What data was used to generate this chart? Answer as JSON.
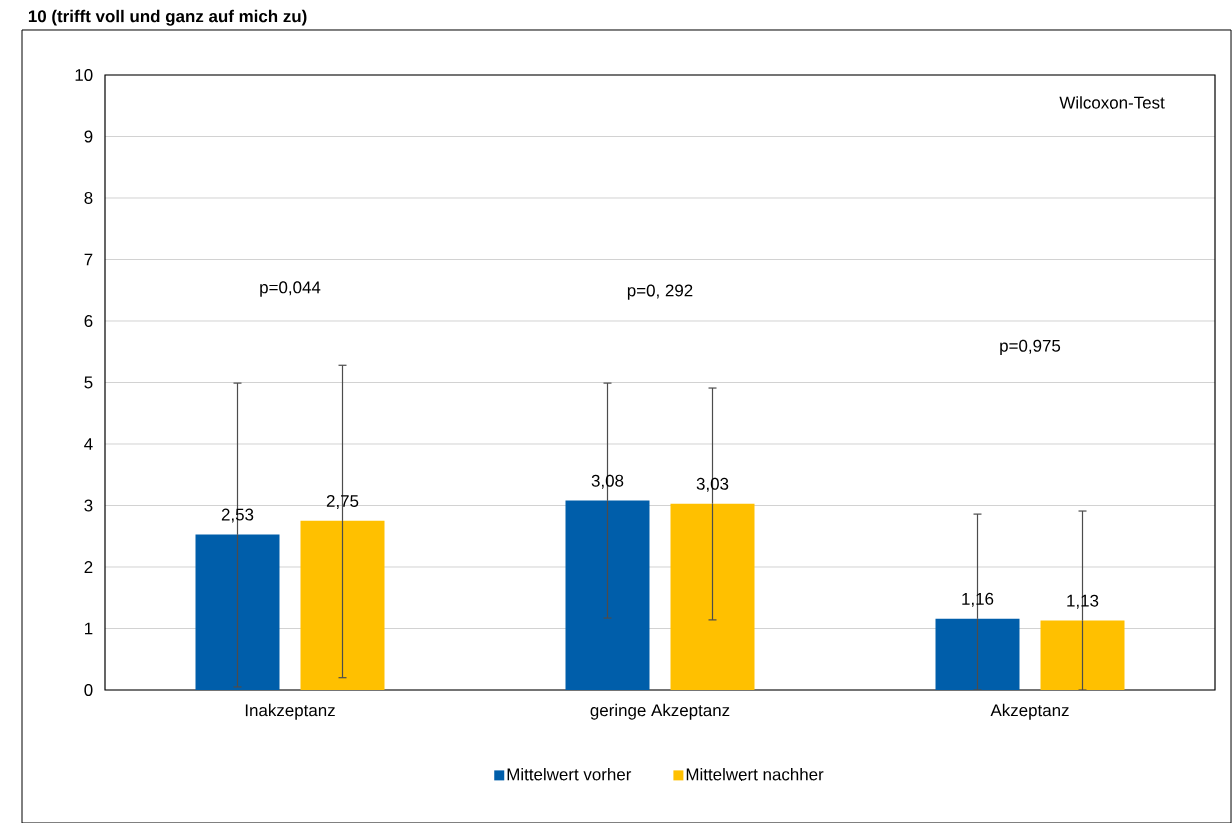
{
  "chart_data": {
    "type": "bar",
    "title": "10 (trifft voll und ganz auf mich zu)",
    "categories": [
      "Inakzeptanz",
      "geringe Akzeptanz",
      "Akzeptanz"
    ],
    "series": [
      {
        "name": "Mittelwert vorher",
        "color": "#005eaa",
        "values": [
          2.53,
          3.08,
          1.16
        ],
        "value_labels": [
          "2,53",
          "3,08",
          "1,16"
        ],
        "errors": [
          [
            0.05,
            4.99
          ],
          [
            1.17,
            4.99
          ],
          [
            0,
            2.86
          ]
        ]
      },
      {
        "name": "Mittelwert nachher",
        "color": "#ffc000",
        "values": [
          2.75,
          3.03,
          1.13
        ],
        "value_labels": [
          "2,75",
          "3,03",
          "1,13"
        ],
        "errors": [
          [
            0.2,
            5.28
          ],
          [
            1.14,
            4.91
          ],
          [
            0,
            2.91
          ]
        ]
      }
    ],
    "ylim": [
      0,
      10
    ],
    "yticks": [
      0,
      1,
      2,
      3,
      4,
      5,
      6,
      7,
      8,
      9,
      10
    ],
    "grid": "y",
    "legend": "bottom",
    "annotations": [
      "Wilcoxon-Test",
      "p=0,044",
      "p=0, 292",
      "p=0,975"
    ]
  }
}
